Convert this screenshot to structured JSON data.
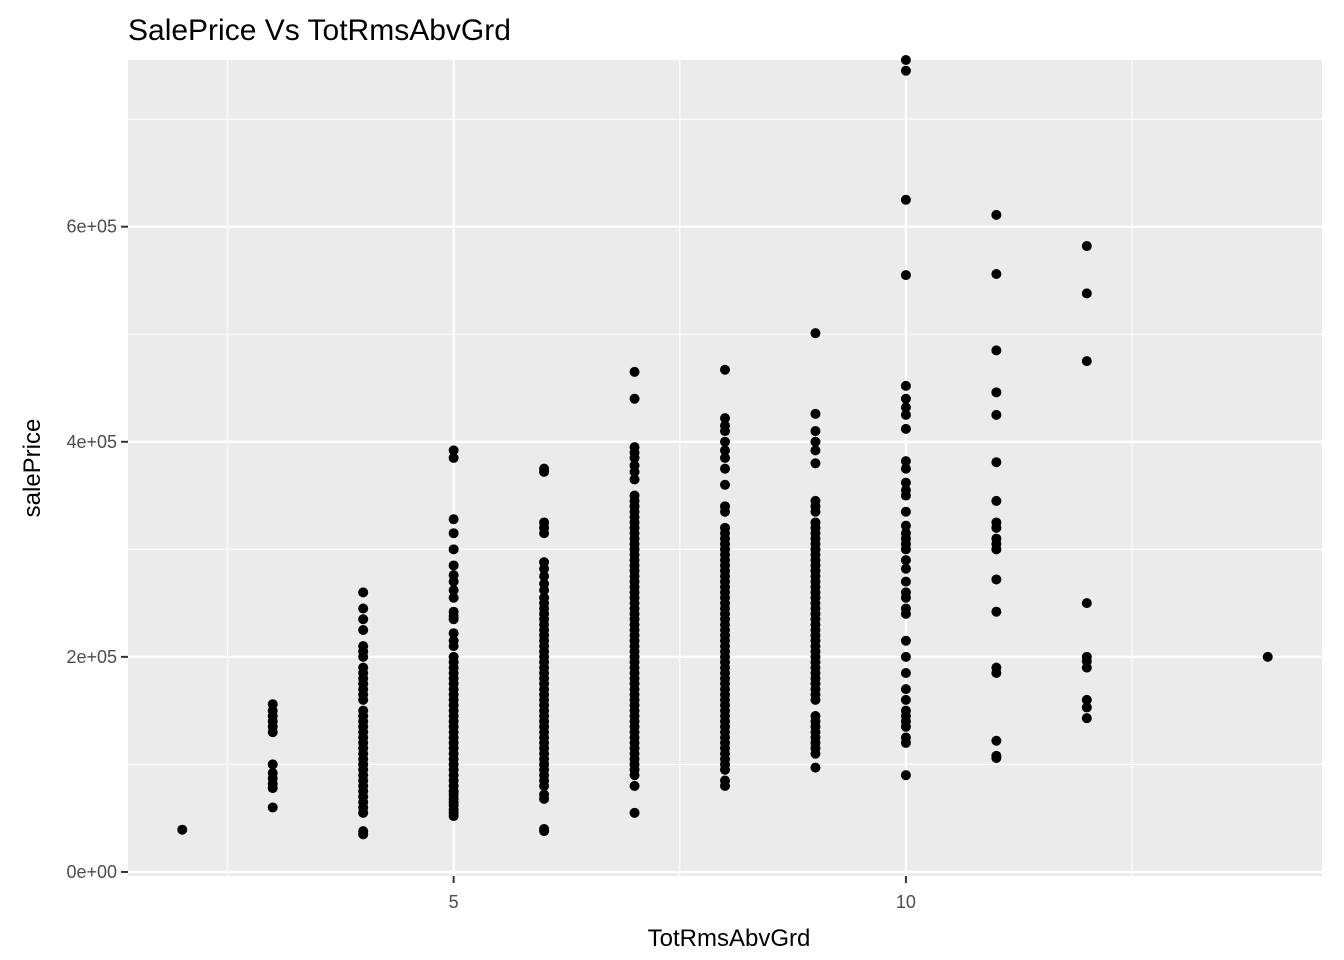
{
  "chart_data": {
    "type": "scatter",
    "title": "SalePrice Vs TotRmsAbvGrd",
    "xlabel": "TotRmsAbvGrd",
    "ylabel": "salePrice",
    "xlim": [
      1.4,
      14.6
    ],
    "ylim": [
      -3750,
      755000
    ],
    "x_ticks": [
      5,
      10
    ],
    "x_tick_labels": [
      "5",
      "10"
    ],
    "y_ticks": [
      0,
      200000,
      400000,
      600000
    ],
    "y_tick_labels": [
      "0e+00",
      "2e+05",
      "4e+05",
      "6e+05"
    ],
    "grid": true,
    "legend": "none",
    "colors": {
      "panel": "#EBEBEB",
      "grid": "#FFFFFF",
      "point": "#000000",
      "tick_text": "#4D4D4D"
    },
    "points_by_x": [
      {
        "x": 2,
        "y": [
          39300
        ]
      },
      {
        "x": 3,
        "y": [
          60000,
          78000,
          82000,
          87000,
          92000,
          100000,
          130000,
          135000,
          140000,
          145000,
          150000,
          156000
        ]
      },
      {
        "x": 4,
        "y": [
          35000,
          38000,
          55000,
          60000,
          65000,
          70000,
          75000,
          80000,
          85000,
          90000,
          95000,
          100000,
          105000,
          110000,
          115000,
          120000,
          125000,
          130000,
          135000,
          140000,
          145000,
          150000,
          160000,
          165000,
          170000,
          175000,
          180000,
          185000,
          190000,
          200000,
          205000,
          210000,
          225000,
          235000,
          245000,
          260000
        ]
      },
      {
        "x": 5,
        "y": [
          52000,
          55000,
          58000,
          62000,
          65000,
          68000,
          72000,
          75000,
          80000,
          85000,
          90000,
          95000,
          100000,
          105000,
          110000,
          115000,
          120000,
          125000,
          130000,
          135000,
          140000,
          145000,
          150000,
          155000,
          160000,
          165000,
          170000,
          175000,
          180000,
          185000,
          190000,
          195000,
          200000,
          210000,
          215000,
          222000,
          235000,
          238000,
          242000,
          255000,
          262000,
          270000,
          276000,
          285000,
          300000,
          315000,
          328000,
          385000,
          392000
        ]
      },
      {
        "x": 6,
        "y": [
          38000,
          40000,
          68000,
          72000,
          80000,
          85000,
          90000,
          95000,
          100000,
          105000,
          110000,
          115000,
          120000,
          125000,
          130000,
          135000,
          140000,
          145000,
          150000,
          155000,
          160000,
          165000,
          170000,
          175000,
          180000,
          185000,
          190000,
          195000,
          200000,
          205000,
          210000,
          215000,
          220000,
          225000,
          230000,
          235000,
          240000,
          245000,
          250000,
          255000,
          262000,
          268000,
          275000,
          282000,
          288000,
          315000,
          320000,
          325000,
          372000,
          375000
        ]
      },
      {
        "x": 7,
        "y": [
          55000,
          80000,
          90000,
          95000,
          100000,
          105000,
          110000,
          115000,
          120000,
          125000,
          130000,
          135000,
          140000,
          145000,
          150000,
          155000,
          160000,
          165000,
          170000,
          175000,
          180000,
          185000,
          190000,
          195000,
          200000,
          205000,
          210000,
          215000,
          220000,
          225000,
          230000,
          235000,
          240000,
          245000,
          250000,
          255000,
          260000,
          265000,
          270000,
          275000,
          280000,
          285000,
          290000,
          295000,
          300000,
          305000,
          310000,
          315000,
          320000,
          325000,
          330000,
          335000,
          340000,
          345000,
          350000,
          365000,
          372000,
          378000,
          385000,
          390000,
          395000,
          440000,
          465000
        ]
      },
      {
        "x": 8,
        "y": [
          80000,
          85000,
          95000,
          100000,
          105000,
          110000,
          115000,
          120000,
          125000,
          130000,
          135000,
          140000,
          145000,
          150000,
          155000,
          160000,
          165000,
          170000,
          175000,
          180000,
          185000,
          190000,
          195000,
          200000,
          205000,
          210000,
          215000,
          220000,
          225000,
          230000,
          235000,
          240000,
          245000,
          250000,
          255000,
          260000,
          265000,
          270000,
          275000,
          280000,
          285000,
          290000,
          295000,
          300000,
          305000,
          310000,
          315000,
          320000,
          335000,
          340000,
          360000,
          375000,
          385000,
          392000,
          400000,
          410000,
          415000,
          422000,
          467000
        ]
      },
      {
        "x": 9,
        "y": [
          97000,
          110000,
          115000,
          120000,
          125000,
          130000,
          135000,
          140000,
          145000,
          160000,
          165000,
          170000,
          175000,
          180000,
          185000,
          190000,
          195000,
          200000,
          205000,
          210000,
          215000,
          220000,
          225000,
          230000,
          235000,
          240000,
          245000,
          250000,
          255000,
          260000,
          265000,
          270000,
          275000,
          280000,
          285000,
          290000,
          295000,
          300000,
          305000,
          310000,
          315000,
          320000,
          325000,
          335000,
          340000,
          345000,
          380000,
          392000,
          400000,
          410000,
          426000,
          501000
        ]
      },
      {
        "x": 10,
        "y": [
          90000,
          120000,
          125000,
          135000,
          140000,
          145000,
          150000,
          160000,
          170000,
          185000,
          200000,
          215000,
          240000,
          245000,
          255000,
          260000,
          270000,
          282000,
          290000,
          300000,
          305000,
          310000,
          315000,
          322000,
          335000,
          350000,
          355000,
          362000,
          375000,
          382000,
          412000,
          425000,
          432000,
          440000,
          452000,
          555000,
          625000,
          745000,
          755000
        ]
      },
      {
        "x": 11,
        "y": [
          106000,
          108000,
          122000,
          185000,
          190000,
          242000,
          272000,
          300000,
          305000,
          310000,
          320000,
          325000,
          345000,
          381000,
          425000,
          446000,
          485000,
          556000,
          611000
        ]
      },
      {
        "x": 12,
        "y": [
          143000,
          153000,
          160000,
          190000,
          196000,
          200000,
          250000,
          475000,
          538000,
          582000
        ]
      },
      {
        "x": 14,
        "y": [
          200000
        ]
      }
    ]
  }
}
